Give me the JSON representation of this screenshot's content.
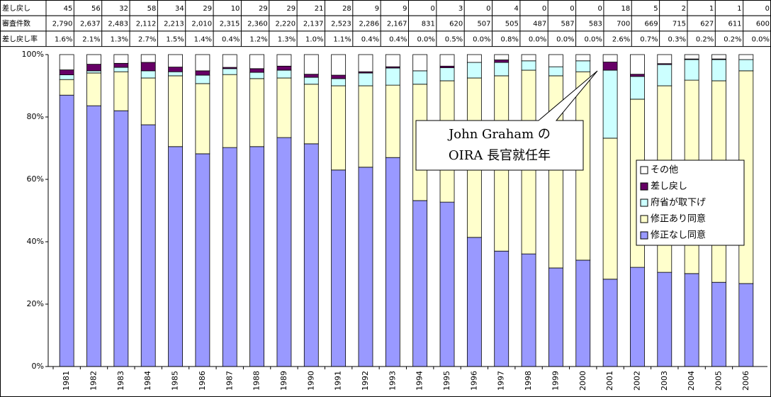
{
  "chart_data": {
    "type": "stacked_bar_100",
    "categories": [
      "1981",
      "1982",
      "1983",
      "1984",
      "1985",
      "1986",
      "1987",
      "1988",
      "1989",
      "1990",
      "1991",
      "1992",
      "1993",
      "1994",
      "1995",
      "1996",
      "1997",
      "1998",
      "1999",
      "2000",
      "2001",
      "2002",
      "2003",
      "2004",
      "2005",
      "2006"
    ],
    "series": [
      {
        "name": "修正なし同意",
        "color": "#9999ff",
        "values": [
          87,
          83.6,
          82,
          77.5,
          70.5,
          68.2,
          70.2,
          70.5,
          73.4,
          71.4,
          63,
          63.9,
          67,
          53.2,
          52.7,
          41.4,
          37,
          36.1,
          31.6,
          34.1,
          28,
          31.8,
          30.2,
          29.8,
          27,
          26.6
        ]
      },
      {
        "name": "修正あり同意",
        "color": "#ffffcc",
        "values": [
          5,
          10.5,
          12.5,
          15,
          22.7,
          22.5,
          23.4,
          21.8,
          19.1,
          19.1,
          27,
          26.1,
          23.2,
          37.3,
          38.9,
          51.1,
          56.2,
          58.9,
          61.6,
          60.4,
          45.2,
          53.9,
          59.8,
          62,
          64.6,
          68.2
        ]
      },
      {
        "name": "府省が取下げ",
        "color": "#ccffff",
        "values": [
          1.5,
          0.7,
          1.4,
          2.3,
          1.3,
          2.7,
          1.9,
          2,
          2.5,
          2.2,
          2.3,
          4.1,
          5.5,
          4.3,
          4.2,
          5,
          4.3,
          3,
          2.9,
          3.5,
          21.8,
          7.3,
          6.8,
          6.6,
          6.8,
          3.6
        ]
      },
      {
        "name": "差し戻し",
        "color": "#660066",
        "values": [
          1.6,
          2.1,
          1.3,
          2.7,
          1.5,
          1.4,
          0.4,
          1.2,
          1.3,
          1,
          1.1,
          0.4,
          0.4,
          0,
          0.5,
          0,
          0.8,
          0,
          0,
          0,
          2.6,
          0.7,
          0.3,
          0.2,
          0.2,
          0
        ]
      },
      {
        "name": "その他",
        "color": "#ffffff",
        "values": [
          4.9,
          3.1,
          2.8,
          2.5,
          4,
          5.2,
          4.1,
          4.5,
          3.7,
          6.3,
          6.6,
          5.5,
          3.9,
          5.2,
          3.7,
          2.5,
          1.7,
          2,
          3.9,
          2,
          2.4,
          6.3,
          2.9,
          1.4,
          1.4,
          1.6
        ]
      }
    ],
    "ylim": [
      0,
      100
    ],
    "yticks": [
      {
        "value": 0,
        "label": "0%"
      },
      {
        "value": 20,
        "label": "20%"
      },
      {
        "value": 40,
        "label": "40%"
      },
      {
        "value": 60,
        "label": "60%"
      },
      {
        "value": 80,
        "label": "80%"
      },
      {
        "value": 100,
        "label": "100%"
      }
    ],
    "grid": false,
    "legend": "right",
    "annotation": [
      "John Graham の",
      "OIRA 長官就任年"
    ]
  },
  "table": {
    "rows": [
      {
        "label": "差し戻し",
        "cells": [
          "45",
          "56",
          "32",
          "58",
          "34",
          "29",
          "10",
          "29",
          "29",
          "21",
          "28",
          "9",
          "9",
          "0",
          "3",
          "0",
          "4",
          "0",
          "0",
          "0",
          "18",
          "5",
          "2",
          "1",
          "1",
          "0"
        ]
      },
      {
        "label": "審査件数",
        "cells": [
          "2,790",
          "2,637",
          "2,483",
          "2,112",
          "2,213",
          "2,010",
          "2,315",
          "2,360",
          "2,220",
          "2,137",
          "2,523",
          "2,286",
          "2,167",
          "831",
          "620",
          "507",
          "505",
          "487",
          "587",
          "583",
          "700",
          "669",
          "715",
          "627",
          "611",
          "600"
        ]
      },
      {
        "label": "差し戻し率",
        "cells": [
          "1.6%",
          "2.1%",
          "1.3%",
          "2.7%",
          "1.5%",
          "1.4%",
          "0.4%",
          "1.2%",
          "1.3%",
          "1.0%",
          "1.1%",
          "0.4%",
          "0.4%",
          "0.0%",
          "0.5%",
          "0.0%",
          "0.8%",
          "0.0%",
          "0.0%",
          "0.0%",
          "2.6%",
          "0.7%",
          "0.3%",
          "0.2%",
          "0.2%",
          "0.0%"
        ]
      }
    ]
  }
}
